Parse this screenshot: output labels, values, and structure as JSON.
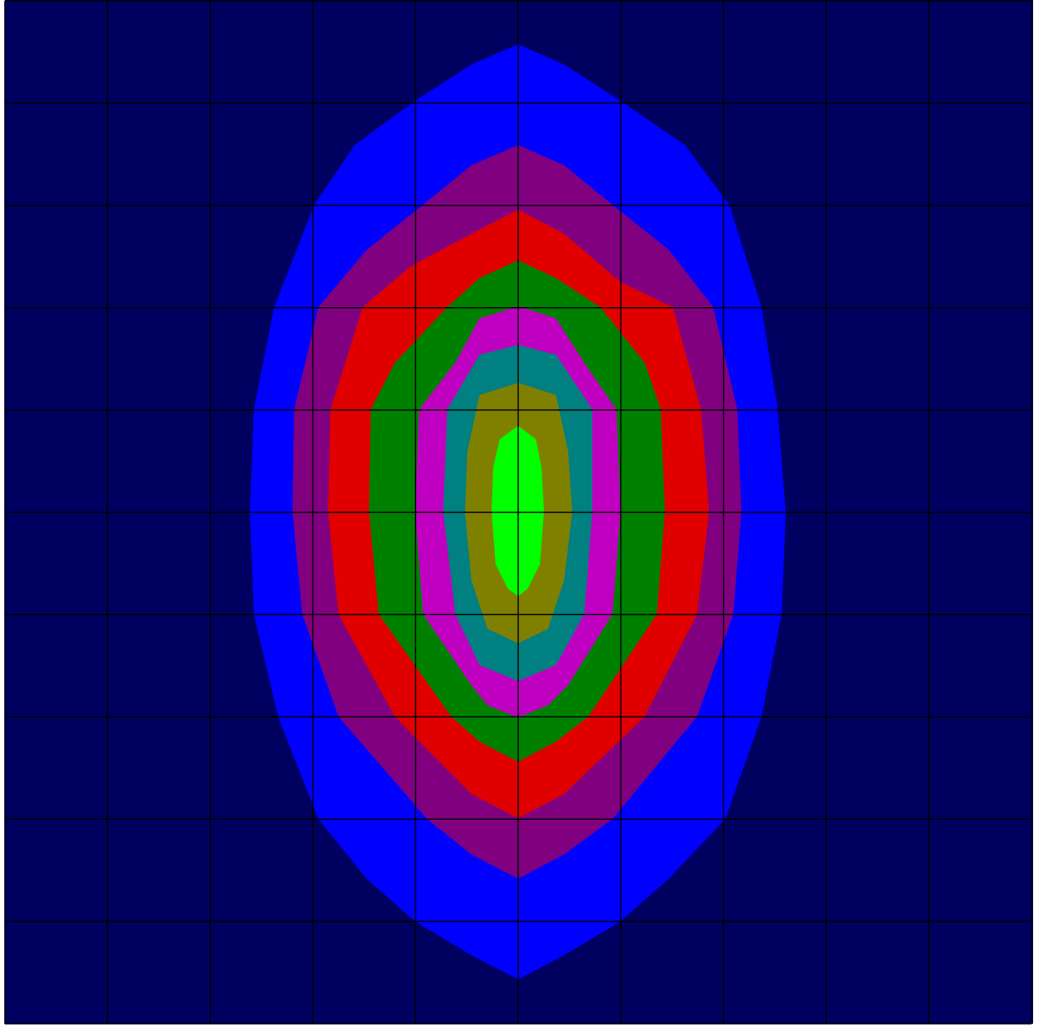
{
  "contour": {
    "background": "#000060",
    "band_colors": [
      "#0000ff",
      "#800080",
      "#e00000",
      "#008000",
      "#c000c0",
      "#008080",
      "#808000",
      "#00ff00"
    ],
    "grid_color": "#000000"
  }
}
